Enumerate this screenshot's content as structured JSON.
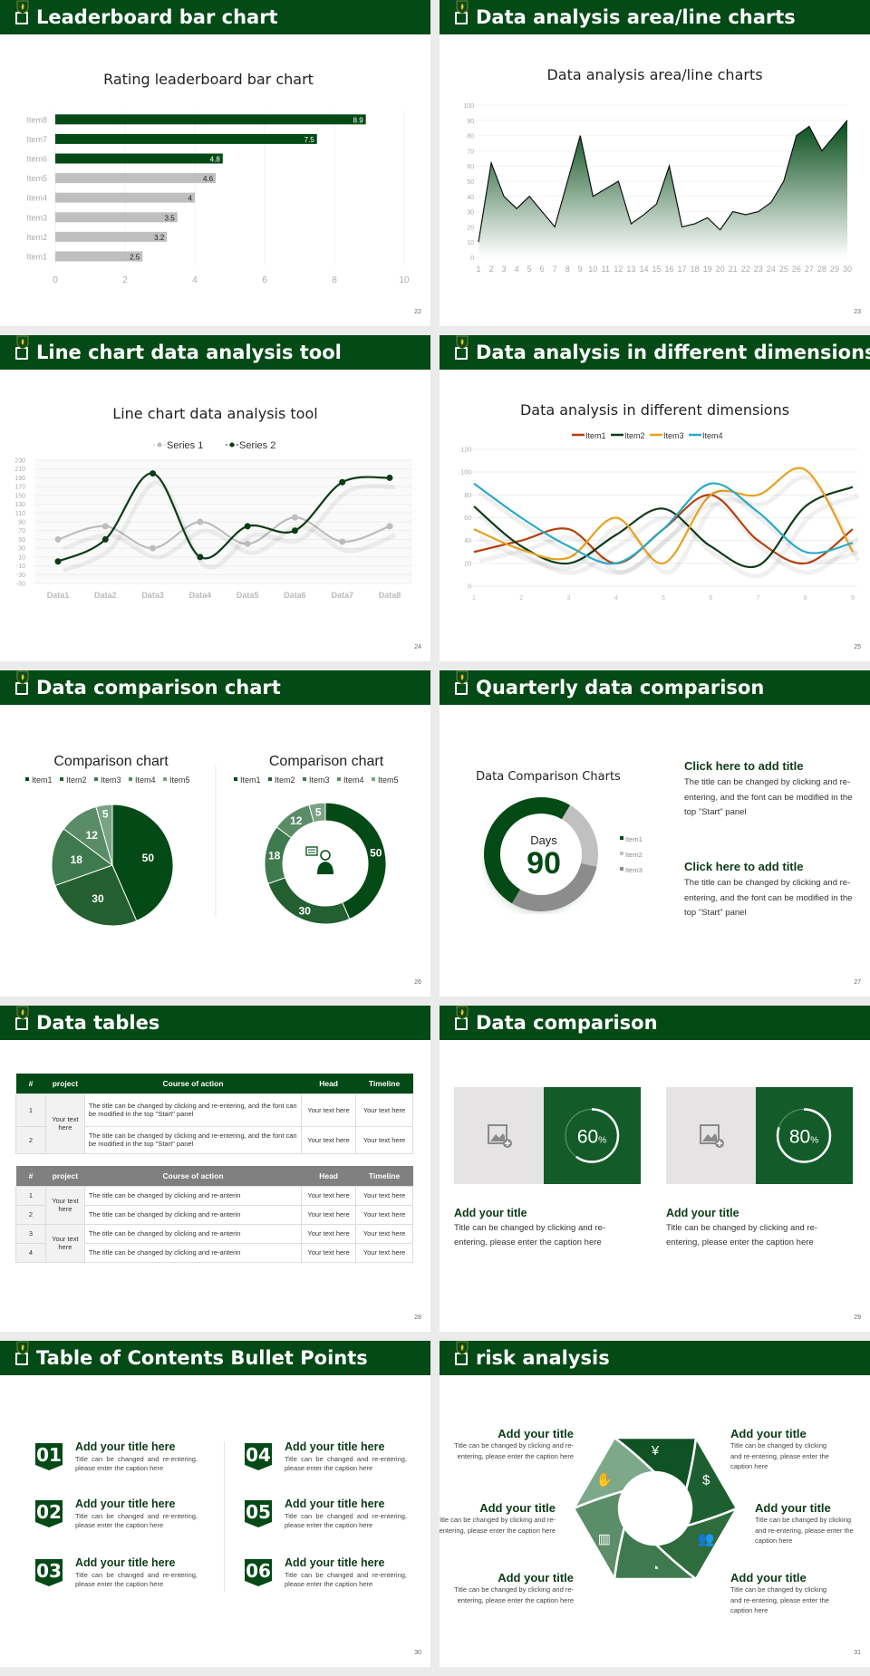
{
  "colors": {
    "brand": "#034a16",
    "gray": "#bfbfbf",
    "item1": "#b5410f",
    "item2": "#0d3b18",
    "item3": "#e8a020",
    "item4": "#2aa9c8"
  },
  "slides": [
    {
      "title": "Leaderboard bar chart",
      "page": "22"
    },
    {
      "title": "Data analysis area/line charts",
      "page": "23"
    },
    {
      "title": "Line chart data analysis tool",
      "page": "24"
    },
    {
      "title": "Data analysis in different dimensions",
      "page": "25"
    },
    {
      "title": "Data comparison chart",
      "page": "26"
    },
    {
      "title": "Quarterly data comparison",
      "page": "27"
    },
    {
      "title": "Data tables",
      "page": "28"
    },
    {
      "title": "Data comparison",
      "page": "29"
    },
    {
      "title": "Table of Contents Bullet Points",
      "page": "30"
    },
    {
      "title": "risk analysis",
      "page": "31"
    }
  ],
  "chart_data": [
    {
      "type": "bar",
      "orientation": "horizontal",
      "title": "Rating leaderboard bar chart",
      "categories": [
        "Item1",
        "Item2",
        "Item3",
        "Item4",
        "Item5",
        "Item6",
        "Item7",
        "Item8"
      ],
      "values": [
        2.5,
        3.2,
        3.5,
        4,
        4.6,
        4.8,
        7.5,
        8.9
      ],
      "highlight_top": 3,
      "xlim": [
        0,
        10
      ],
      "xticks": [
        "0",
        "2",
        "4",
        "6",
        "8",
        "10"
      ],
      "grid": true
    },
    {
      "type": "area",
      "title": "Data analysis area/line charts",
      "x": [
        1,
        2,
        3,
        4,
        5,
        6,
        7,
        8,
        9,
        10,
        11,
        12,
        13,
        14,
        15,
        16,
        17,
        18,
        19,
        20,
        21,
        22,
        23,
        24,
        25,
        26,
        27,
        28,
        29,
        30
      ],
      "values": [
        10,
        62,
        40,
        32,
        40,
        30,
        20,
        50,
        80,
        40,
        45,
        50,
        22,
        28,
        35,
        60,
        20,
        22,
        26,
        18,
        30,
        28,
        30,
        36,
        50,
        80,
        86,
        70,
        80,
        90
      ],
      "ylim": [
        0,
        100
      ],
      "yticks": [
        "0",
        "10",
        "20",
        "30",
        "40",
        "50",
        "60",
        "70",
        "80",
        "90",
        "100"
      ],
      "grid": true
    },
    {
      "type": "line",
      "smooth": true,
      "title": "Line chart data analysis tool",
      "categories": [
        "Data1",
        "Data2",
        "Data3",
        "Data4",
        "Data5",
        "Data6",
        "Data7",
        "Data8"
      ],
      "series": [
        {
          "name": "Series 1",
          "values": [
            50,
            80,
            30,
            90,
            40,
            100,
            45,
            80
          ]
        },
        {
          "name": "Series 2",
          "values": [
            0,
            50,
            200,
            10,
            80,
            70,
            180,
            190
          ]
        }
      ],
      "ylim": [
        -50,
        230
      ],
      "yticks": [
        "230",
        "210",
        "190",
        "170",
        "150",
        "130",
        "110",
        "90",
        "70",
        "50",
        "30",
        "10",
        "-10",
        "-30",
        "-50"
      ],
      "legend": "top"
    },
    {
      "type": "line",
      "smooth": true,
      "title": "Data analysis in different dimensions",
      "categories": [
        "1",
        "2",
        "3",
        "4",
        "5",
        "6",
        "7",
        "8",
        "9"
      ],
      "series": [
        {
          "name": "Item1",
          "values": [
            30,
            40,
            50,
            20,
            50,
            80,
            40,
            20,
            50
          ]
        },
        {
          "name": "Item2",
          "values": [
            70,
            35,
            20,
            45,
            68,
            35,
            18,
            70,
            87
          ]
        },
        {
          "name": "Item3",
          "values": [
            50,
            32,
            25,
            60,
            20,
            80,
            80,
            102,
            30
          ]
        },
        {
          "name": "Item4",
          "values": [
            90,
            60,
            35,
            20,
            50,
            90,
            65,
            30,
            38
          ]
        }
      ],
      "ylim": [
        0,
        120
      ],
      "yticks": [
        "0",
        "20",
        "40",
        "60",
        "80",
        "100",
        "120"
      ],
      "legend": "top"
    },
    {
      "type": "pie",
      "title": "Comparison chart",
      "categories": [
        "Item1",
        "Item2",
        "Item3",
        "Item4",
        "Item5"
      ],
      "values": [
        50,
        30,
        18,
        12,
        5
      ],
      "legend": "top"
    },
    {
      "type": "pie",
      "donut": true,
      "title": "Comparison chart",
      "categories": [
        "Item1",
        "Item2",
        "Item3",
        "Item4",
        "Item5"
      ],
      "values": [
        50,
        30,
        18,
        12,
        5
      ],
      "legend": "top"
    },
    {
      "type": "pie",
      "donut": true,
      "title": "Data Comparison Charts",
      "categories": [
        "Item1",
        "Item2",
        "Item3"
      ],
      "values": [
        50,
        20,
        30
      ],
      "center_label": "Days",
      "center_value": "90",
      "legend": "right"
    }
  ],
  "quarterly": {
    "blocks": [
      {
        "title": "Click here to add title",
        "body": "The title can be changed by clicking and re-entering, and the font can be modified in the top \"Start\" panel"
      },
      {
        "title": "Click here to add title",
        "body": "The title can be changed by clicking and re-entering, and the font can be modified in the top \"Start\" panel"
      }
    ]
  },
  "tables": {
    "headers": [
      "#",
      "project",
      "Course of action",
      "Head",
      "Timeline"
    ],
    "t1": {
      "project": "Your text here",
      "rows": [
        {
          "n": "1",
          "course": " The title can be changed by clicking and re-entering, and the font can be modified in the top \"Start\" panel",
          "head": "Your text here",
          "timeline": "Your text here"
        },
        {
          "n": "2",
          "course": "The title can be changed by clicking and re-entering, and the font can be modified in the top \"Start\" panel",
          "head": "Your text here",
          "timeline": "Your text here"
        }
      ]
    },
    "t2": {
      "projects": [
        "Your text here",
        "Your text here"
      ],
      "rows": [
        {
          "n": "1",
          "course": "The title can be changed by clicking and re-anterin",
          "head": "Your text here",
          "timeline": "Your text here"
        },
        {
          "n": "2",
          "course": "The title can be changed by clicking and re-anterin",
          "head": "Your text here",
          "timeline": "Your text here"
        },
        {
          "n": "3",
          "course": "The title can be changed by clicking and re-anterin",
          "head": "Your text here",
          "timeline": "Your text here"
        },
        {
          "n": "4",
          "course": "The title can be changed by clicking and re-anterin",
          "head": "Your text here",
          "timeline": "Your text here"
        }
      ]
    }
  },
  "comparison": {
    "cards": [
      {
        "percent": 60,
        "value": "60",
        "unit": "%",
        "title": "Add your title",
        "body": "Title can be changed by clicking and re-entering, please enter the caption here",
        "icon": "image-add-icon"
      },
      {
        "percent": 80,
        "value": "80",
        "unit": "%",
        "title": "Add your title",
        "body": "Title can be changed by clicking and re-entering, please enter the caption here",
        "icon": "image-add-icon"
      }
    ]
  },
  "toc": {
    "items": [
      {
        "num": "01",
        "title": "Add your title here",
        "body": "Title can be changed and re-entering, please enter the caption here"
      },
      {
        "num": "02",
        "title": "Add your title here",
        "body": "Title can be changed and re-entering, please enter the caption here"
      },
      {
        "num": "03",
        "title": "Add your title here",
        "body": "Title can be changed and re-entering, please enter the caption here"
      },
      {
        "num": "04",
        "title": "Add your title here",
        "body": "Title can be changed and re-entering, please enter the caption here"
      },
      {
        "num": "05",
        "title": "Add your title here",
        "body": "Title can be changed and re-entering, please enter the caption here"
      },
      {
        "num": "06",
        "title": "Add your title here",
        "body": "Title can be changed and re-entering, please enter the caption here"
      }
    ]
  },
  "risk": {
    "items": [
      {
        "title": "Add your title",
        "body": "Title can be changed by clicking and re-entering, please enter the caption here"
      },
      {
        "title": "Add your title",
        "body": "Title can be changed by clicking and re-entering, please enter the caption here"
      },
      {
        "title": "Add your title",
        "body": "Title can be changed by clicking and re-entering, please enter the caption here"
      },
      {
        "title": "Add your title",
        "body": "Title can be changed by clicking and re-entering, please enter the caption here"
      },
      {
        "title": "Add your title",
        "body": "Title can be changed by clicking and re-entering, please enter the caption here"
      },
      {
        "title": "Add your title",
        "body": "Title can be changed by clicking and re-entering, please enter the caption here"
      }
    ],
    "icons": [
      "money-bag-icon",
      "coins-dollar-icon",
      "people-icon",
      "pie-chart-icon",
      "buildings-icon",
      "hand-money-icon"
    ],
    "icon_glyphs": [
      "¥",
      "$",
      "👥",
      "◔",
      "▥",
      "✋"
    ]
  }
}
